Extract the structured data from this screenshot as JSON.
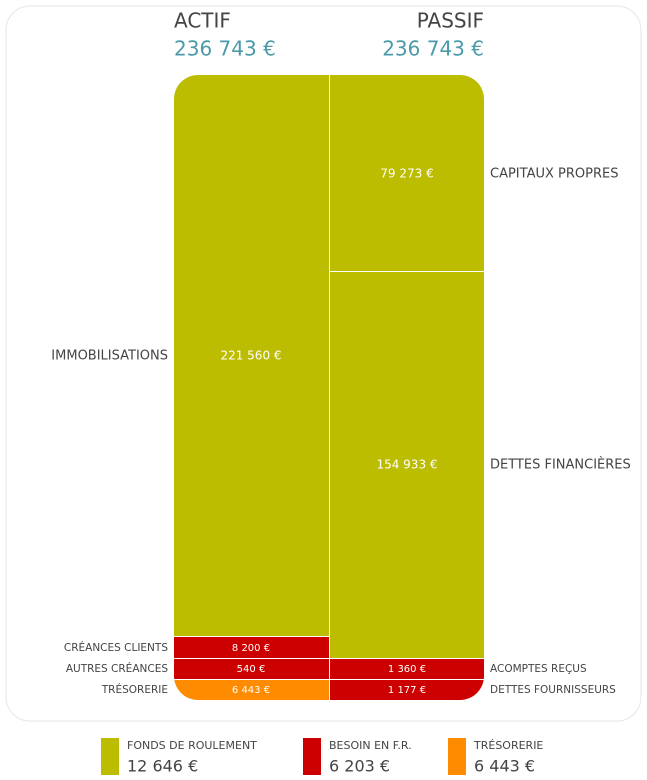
{
  "header": {
    "actif": {
      "title": "ACTIF",
      "total": "236 743 €"
    },
    "passif": {
      "title": "PASSIF",
      "total": "236 743 €"
    }
  },
  "actif": [
    {
      "label": "IMMOBILISATIONS",
      "value": "221 560 €"
    },
    {
      "label": "CRÉANCES CLIENTS",
      "value": "8 200 €"
    },
    {
      "label": "AUTRES CRÉANCES",
      "value": "540 €"
    },
    {
      "label": "TRÉSORERIE",
      "value": "6 443 €"
    }
  ],
  "passif": [
    {
      "label": "CAPITAUX PROPRES",
      "value": "79 273 €"
    },
    {
      "label": "DETTES FINANCIÈRES",
      "value": "154 933 €"
    },
    {
      "label": "ACOMPTES REÇUS",
      "value": "1 360 €"
    },
    {
      "label": "DETTES FOURNISSEURS",
      "value": "1 177 €"
    }
  ],
  "legend": [
    {
      "label": "FONDS DE ROULEMENT",
      "value": "12 646 €"
    },
    {
      "label": "BESOIN EN F.R.",
      "value": "6 203 €"
    },
    {
      "label": "TRÉSORERIE",
      "value": "6 443 €"
    }
  ]
}
